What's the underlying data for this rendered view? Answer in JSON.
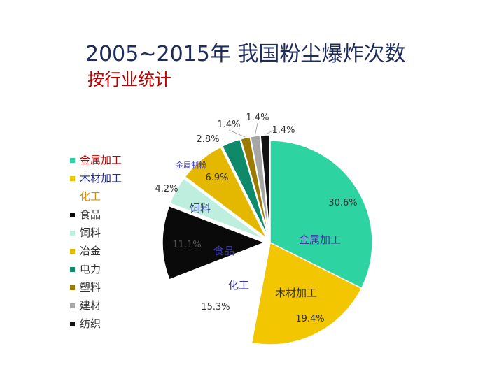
{
  "header": {
    "title": "2005~2015年  我国粉尘爆炸次数",
    "subtitle": "按行业统计"
  },
  "colors": {
    "title": "#1f2d5c",
    "subtitle": "#c00000",
    "label_blue": "#3a3a9a",
    "pct_gray": "#333333"
  },
  "chart_data": {
    "type": "pie",
    "title": "2005~2015年  我国粉尘爆炸次数",
    "subtitle": "按行业统计",
    "legend_position": "left",
    "slices": [
      {
        "name": "金属加工",
        "value": 30.6,
        "label": "30.6%",
        "color": "#2ed3a2",
        "legend_color": "#c00000",
        "exploded": false
      },
      {
        "name": "木材加工",
        "value": 19.4,
        "label": "19.4%",
        "color": "#f2c600",
        "legend_color": "#1f2d8c",
        "exploded": false
      },
      {
        "name": "化工",
        "value": 15.3,
        "label": "15.3%",
        "color": "#ffffff",
        "legend_color": "#e08a00",
        "exploded": false,
        "no_swatch": true
      },
      {
        "name": "食品",
        "value": 11.1,
        "label": "11.1%",
        "color": "#0a0a0a",
        "legend_color": "#333333",
        "exploded": true
      },
      {
        "name": "饲料",
        "value": 4.2,
        "label": "4.2%",
        "color": "#bdeede",
        "legend_color": "#333333",
        "exploded": true
      },
      {
        "name": "冶金",
        "value": 6.9,
        "label": "6.9%",
        "color": "#e5b800",
        "legend_color": "#333333",
        "exploded": true
      },
      {
        "name": "电力",
        "value": 2.8,
        "label": "2.8%",
        "color": "#0e8a6a",
        "legend_color": "#333333",
        "exploded": true
      },
      {
        "name": "塑料",
        "value": 1.4,
        "label": "1.4%",
        "color": "#9c7a00",
        "legend_color": "#333333",
        "exploded": true
      },
      {
        "name": "建材",
        "value": 1.4,
        "label": "1.4%",
        "color": "#a6a6a6",
        "legend_color": "#333333",
        "exploded": true
      },
      {
        "name": "纺织",
        "value": 1.4,
        "label": "1.4%",
        "color": "#111111",
        "legend_color": "#333333",
        "exploded": true
      }
    ],
    "annotations": [
      {
        "text": "金属加工",
        "slice": "金属加工"
      },
      {
        "text": "木材加工",
        "slice": "木材加工"
      },
      {
        "text": "化工",
        "slice": "化工"
      },
      {
        "text": "食品",
        "slice": "食品"
      },
      {
        "text": "饲料",
        "slice": "饲料"
      },
      {
        "text": "金属制粉",
        "slice": "冶金"
      }
    ]
  }
}
